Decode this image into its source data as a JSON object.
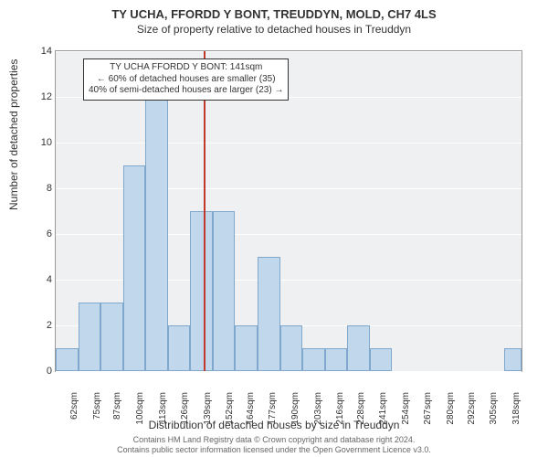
{
  "title": "TY UCHA, FFORDD Y BONT, TREUDDYN, MOLD, CH7 4LS",
  "subtitle": "Size of property relative to detached houses in Treuddyn",
  "ylabel": "Number of detached properties",
  "xlabel": "Distribution of detached houses by size in Treuddyn",
  "footer1": "Contains HM Land Registry data © Crown copyright and database right 2024.",
  "footer2": "Contains public sector information licensed under the Open Government Licence v3.0.",
  "annotation": {
    "line1": "TY UCHA FFORDD Y BONT: 141sqm",
    "line2": "← 60% of detached houses are smaller (35)",
    "line3": "40% of semi-detached houses are larger (23) →"
  },
  "chart": {
    "type": "histogram",
    "background_color": "#eef0f2",
    "grid_color": "#ffffff",
    "bar_fill": "#c1d8ec",
    "bar_stroke": "#7fa8cc",
    "vline_color": "#c0392b",
    "vline_x": 141,
    "annot_bg": "#ffffff",
    "annot_border": "#333333",
    "xlim": [
      55,
      325
    ],
    "ylim": [
      0,
      14
    ],
    "ytick_step": 2,
    "xticks": [
      62,
      75,
      87,
      100,
      113,
      126,
      139,
      152,
      164,
      177,
      190,
      203,
      216,
      228,
      241,
      254,
      267,
      280,
      292,
      305,
      318
    ],
    "xtick_suffix": "sqm",
    "bars": [
      {
        "x0": 55,
        "x1": 68,
        "y": 1
      },
      {
        "x0": 68,
        "x1": 81,
        "y": 3
      },
      {
        "x0": 81,
        "x1": 94,
        "y": 3
      },
      {
        "x0": 94,
        "x1": 107,
        "y": 9
      },
      {
        "x0": 107,
        "x1": 120,
        "y": 12
      },
      {
        "x0": 120,
        "x1": 133,
        "y": 2
      },
      {
        "x0": 133,
        "x1": 146,
        "y": 7
      },
      {
        "x0": 146,
        "x1": 159,
        "y": 7
      },
      {
        "x0": 159,
        "x1": 172,
        "y": 2
      },
      {
        "x0": 172,
        "x1": 185,
        "y": 5
      },
      {
        "x0": 185,
        "x1": 198,
        "y": 2
      },
      {
        "x0": 198,
        "x1": 211,
        "y": 1
      },
      {
        "x0": 211,
        "x1": 224,
        "y": 1
      },
      {
        "x0": 224,
        "x1": 237,
        "y": 2
      },
      {
        "x0": 237,
        "x1": 250,
        "y": 1
      },
      {
        "x0": 250,
        "x1": 263,
        "y": 0
      },
      {
        "x0": 263,
        "x1": 276,
        "y": 0
      },
      {
        "x0": 276,
        "x1": 289,
        "y": 0
      },
      {
        "x0": 289,
        "x1": 302,
        "y": 0
      },
      {
        "x0": 302,
        "x1": 315,
        "y": 0
      },
      {
        "x0": 315,
        "x1": 325,
        "y": 1
      }
    ]
  }
}
